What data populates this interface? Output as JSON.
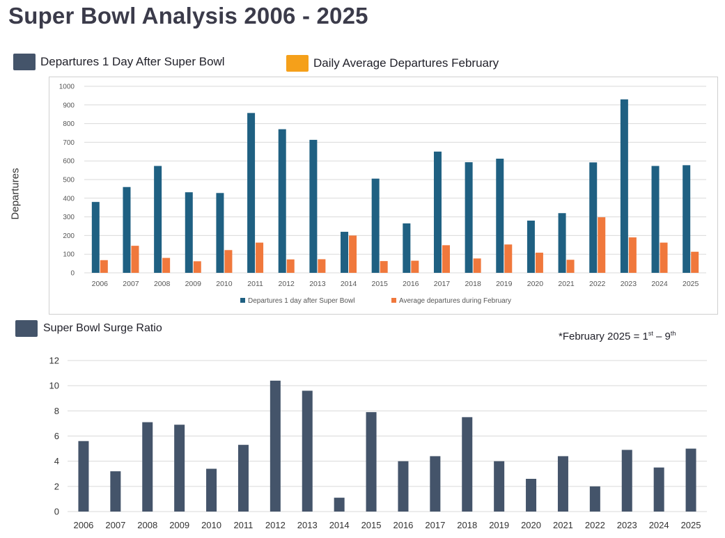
{
  "page": {
    "title": "Super Bowl Analysis 2006 - 2025",
    "y_axis_title": "Departures",
    "footnote_prefix": "*February 2025 = 1",
    "footnote_sup1": "st",
    "footnote_mid": " – 9",
    "footnote_sup2": "th"
  },
  "legend_top": {
    "item1": {
      "label": "Departures 1 Day After Super Bowl",
      "color": "#44546a"
    },
    "item2": {
      "label": "Daily Average Departures February",
      "color": "#f5a01a"
    }
  },
  "section2": {
    "label": "Super Bowl Surge Ratio",
    "color": "#44546a"
  },
  "chart_data": [
    {
      "type": "bar",
      "categories": [
        "2006",
        "2007",
        "2008",
        "2009",
        "2010",
        "2011",
        "2012",
        "2013",
        "2014",
        "2015",
        "2016",
        "2017",
        "2018",
        "2019",
        "2020",
        "2021",
        "2022",
        "2023",
        "2024",
        "2025"
      ],
      "series": [
        {
          "name": "Departures 1 day after Super Bowl",
          "color": "#1f6082",
          "values": [
            380,
            460,
            573,
            432,
            428,
            857,
            770,
            713,
            220,
            505,
            265,
            650,
            593,
            612,
            280,
            320,
            592,
            930,
            573,
            577
          ]
        },
        {
          "name": "Average departures during February",
          "color": "#f0783c",
          "values": [
            68,
            145,
            80,
            62,
            122,
            162,
            72,
            73,
            200,
            63,
            65,
            148,
            77,
            152,
            108,
            70,
            298,
            190,
            162,
            113
          ]
        }
      ],
      "xlabel": "",
      "ylabel": "Departures",
      "ylim": [
        0,
        1000
      ],
      "yticks": [
        0,
        100,
        200,
        300,
        400,
        500,
        600,
        700,
        800,
        900,
        1000
      ],
      "grid": true,
      "legend": "bottom"
    },
    {
      "type": "bar",
      "categories": [
        "2006",
        "2007",
        "2008",
        "2009",
        "2010",
        "2011",
        "2012",
        "2013",
        "2014",
        "2015",
        "2016",
        "2017",
        "2018",
        "2019",
        "2020",
        "2021",
        "2022",
        "2023",
        "2024",
        "2025"
      ],
      "series": [
        {
          "color": "#44546a",
          "values": [
            5.6,
            3.2,
            7.1,
            6.9,
            3.4,
            5.3,
            10.4,
            9.6,
            1.1,
            7.9,
            4.0,
            4.4,
            7.5,
            4.0,
            2.6,
            4.4,
            2.0,
            4.9,
            3.5,
            5.0
          ]
        }
      ],
      "xlabel": "",
      "ylabel": "",
      "ylim": [
        0,
        12
      ],
      "yticks": [
        0,
        2,
        4,
        6,
        8,
        10,
        12
      ],
      "grid": true
    }
  ]
}
